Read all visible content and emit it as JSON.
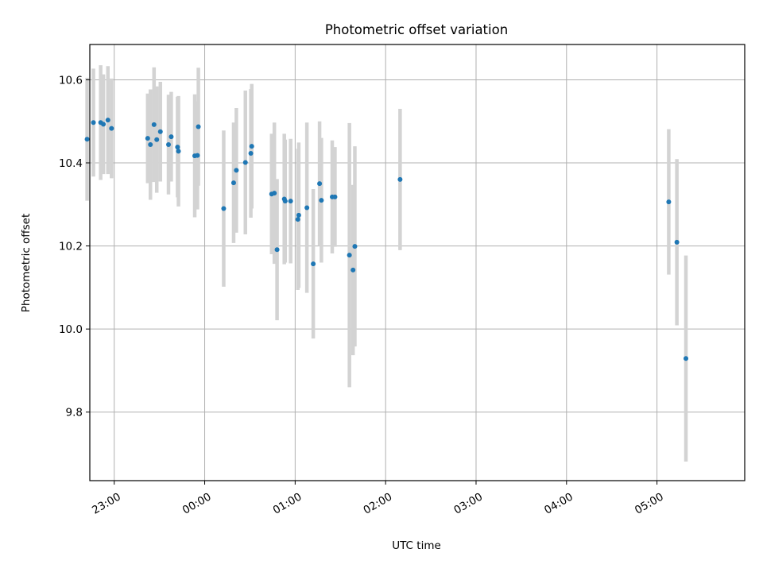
{
  "chart_data": {
    "type": "scatter",
    "title": "Photometric offset variation",
    "xlabel": "UTC time",
    "ylabel": "Photometric offset",
    "x_unit": "hours relative to 00:00 UTC",
    "xlim": [
      -1.27,
      5.97
    ],
    "ylim": [
      9.635,
      10.685
    ],
    "xticks": [
      {
        "value": -1,
        "label": "23:00"
      },
      {
        "value": 0,
        "label": "00:00"
      },
      {
        "value": 1,
        "label": "01:00"
      },
      {
        "value": 2,
        "label": "02:00"
      },
      {
        "value": 3,
        "label": "03:00"
      },
      {
        "value": 4,
        "label": "04:00"
      },
      {
        "value": 5,
        "label": "05:00"
      }
    ],
    "yticks": [
      {
        "value": 9.8,
        "label": "9.8"
      },
      {
        "value": 10.0,
        "label": "10.0"
      },
      {
        "value": 10.2,
        "label": "10.2"
      },
      {
        "value": 10.4,
        "label": "10.4"
      },
      {
        "value": 10.6,
        "label": "10.6"
      }
    ],
    "grid": true,
    "colors": {
      "marker": "#1f77b4",
      "errorbar": "#d3d3d3",
      "grid": "#b0b0b0"
    },
    "points": [
      {
        "x": -1.3,
        "y": 10.457,
        "err": 0.148
      },
      {
        "x": -1.23,
        "y": 10.497,
        "err": 0.13
      },
      {
        "x": -1.15,
        "y": 10.497,
        "err": 0.138
      },
      {
        "x": -1.12,
        "y": 10.493,
        "err": 0.12
      },
      {
        "x": -1.07,
        "y": 10.503,
        "err": 0.13
      },
      {
        "x": -1.03,
        "y": 10.483,
        "err": 0.12
      },
      {
        "x": -0.63,
        "y": 10.459,
        "err": 0.108
      },
      {
        "x": -0.6,
        "y": 10.444,
        "err": 0.133
      },
      {
        "x": -0.56,
        "y": 10.492,
        "err": 0.138
      },
      {
        "x": -0.53,
        "y": 10.456,
        "err": 0.128
      },
      {
        "x": -0.49,
        "y": 10.475,
        "err": 0.12
      },
      {
        "x": -0.4,
        "y": 10.444,
        "err": 0.12
      },
      {
        "x": -0.37,
        "y": 10.463,
        "err": 0.108
      },
      {
        "x": -0.3,
        "y": 10.438,
        "err": 0.121
      },
      {
        "x": -0.29,
        "y": 10.428,
        "err": 0.133
      },
      {
        "x": -0.11,
        "y": 10.417,
        "err": 0.148
      },
      {
        "x": -0.08,
        "y": 10.418,
        "err": 0.13
      },
      {
        "x": -0.07,
        "y": 10.487,
        "err": 0.142
      },
      {
        "x": 0.21,
        "y": 10.29,
        "err": 0.188
      },
      {
        "x": 0.32,
        "y": 10.352,
        "err": 0.145
      },
      {
        "x": 0.35,
        "y": 10.382,
        "err": 0.15
      },
      {
        "x": 0.45,
        "y": 10.401,
        "err": 0.173
      },
      {
        "x": 0.51,
        "y": 10.423,
        "err": 0.155
      },
      {
        "x": 0.52,
        "y": 10.44,
        "err": 0.15
      },
      {
        "x": 0.74,
        "y": 10.325,
        "err": 0.145
      },
      {
        "x": 0.77,
        "y": 10.327,
        "err": 0.17
      },
      {
        "x": 0.8,
        "y": 10.191,
        "err": 0.17
      },
      {
        "x": 0.88,
        "y": 10.313,
        "err": 0.157
      },
      {
        "x": 0.89,
        "y": 10.308,
        "err": 0.148
      },
      {
        "x": 0.95,
        "y": 10.308,
        "err": 0.15
      },
      {
        "x": 1.03,
        "y": 10.264,
        "err": 0.17
      },
      {
        "x": 1.04,
        "y": 10.274,
        "err": 0.175
      },
      {
        "x": 1.13,
        "y": 10.292,
        "err": 0.205
      },
      {
        "x": 1.2,
        "y": 10.157,
        "err": 0.18
      },
      {
        "x": 1.27,
        "y": 10.35,
        "err": 0.15
      },
      {
        "x": 1.29,
        "y": 10.31,
        "err": 0.15
      },
      {
        "x": 1.41,
        "y": 10.318,
        "err": 0.136
      },
      {
        "x": 1.44,
        "y": 10.318,
        "err": 0.12
      },
      {
        "x": 1.6,
        "y": 10.178,
        "err": 0.318
      },
      {
        "x": 1.64,
        "y": 10.142,
        "err": 0.205
      },
      {
        "x": 1.66,
        "y": 10.199,
        "err": 0.241
      },
      {
        "x": 2.16,
        "y": 10.36,
        "err": 0.17
      },
      {
        "x": 5.13,
        "y": 10.306,
        "err": 0.175
      },
      {
        "x": 5.22,
        "y": 10.209,
        "err": 0.2
      },
      {
        "x": 5.32,
        "y": 9.929,
        "err": 0.248
      }
    ]
  }
}
